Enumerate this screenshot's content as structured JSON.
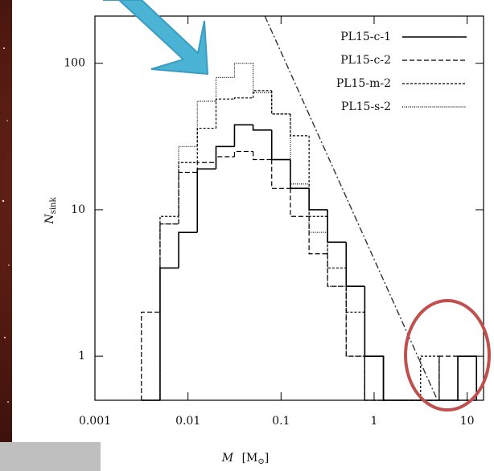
{
  "chart_data": {
    "type": "histogram",
    "xlabel_symbol": "M",
    "xlabel_unit_open": "[M",
    "xlabel_unit_sub": "⊙",
    "xlabel_unit_close": "]",
    "ylabel_symbol": "N",
    "ylabel_sub": "sink",
    "log_x": true,
    "log_y": true,
    "xlim": [
      0.001,
      15
    ],
    "ylim": [
      0.5,
      210
    ],
    "xticks": [
      0.001,
      0.01,
      0.1,
      1,
      10
    ],
    "yticks": [
      1,
      10,
      100
    ],
    "legend": "upper right",
    "bins": [
      0.00316,
      0.00501,
      0.00794,
      0.0126,
      0.02,
      0.0316,
      0.0501,
      0.0794,
      0.126,
      0.2,
      0.316,
      0.501,
      0.794,
      1.26,
      2,
      3.16,
      5.01,
      7.94,
      12.6
    ],
    "series": [
      {
        "name": "PL15-c-1",
        "color": "#000000",
        "dash": "none",
        "values": [
          0,
          4,
          7,
          19,
          27,
          38,
          35,
          22,
          14,
          10,
          6,
          3,
          1,
          0,
          0,
          0,
          0,
          1
        ]
      },
      {
        "name": "PL15-c-2",
        "color": "#000000",
        "dash": "6 3",
        "values": [
          2,
          8,
          18,
          21,
          23,
          25,
          22,
          14,
          9,
          5,
          3,
          1,
          0,
          0,
          0,
          0,
          1,
          0
        ]
      },
      {
        "name": "PL15-m-2",
        "color": "#000000",
        "dash": "3 2",
        "values": [
          0,
          9,
          21,
          36,
          57,
          58,
          65,
          45,
          32,
          9,
          4,
          2,
          0,
          0,
          0,
          1,
          0,
          0
        ]
      },
      {
        "name": "PL15-s-2",
        "color": "#000000",
        "dash": "1 1.5",
        "values": [
          0,
          8,
          27,
          55,
          80,
          100,
          63,
          45,
          15,
          7,
          3,
          1,
          0,
          0,
          0,
          0,
          0,
          0
        ]
      }
    ],
    "reference_line": {
      "x": [
        0.067,
        4.8
      ],
      "y": [
        210,
        0.5
      ],
      "color": "#333333",
      "dash": "8 3 2 3"
    }
  }
}
